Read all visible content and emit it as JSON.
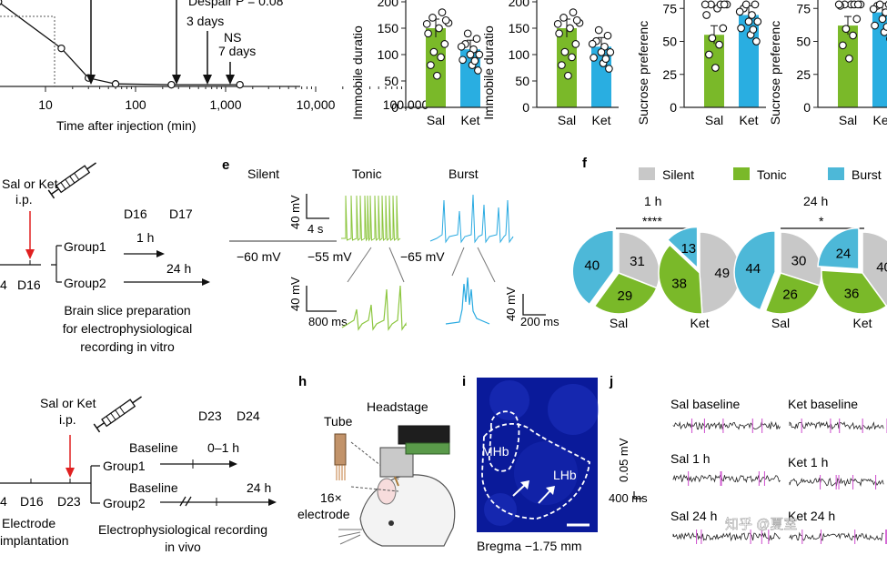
{
  "row1": {
    "panel_a": {
      "despair_fp": "Despair P = 0.08",
      "arrow_3days": "3 days",
      "arrow_ns": "NS",
      "arrow_7days": "7 days",
      "xaxis_label": "Time after injection (min)",
      "xticks": [
        "10",
        "100",
        "1,000",
        "10,000",
        "100,000"
      ]
    },
    "panel_b": {
      "ylabel": "Immobile duratio",
      "yticks": [
        "0",
        "50",
        "100",
        "150",
        "200"
      ],
      "categories": [
        "Sal",
        "Ket"
      ]
    },
    "panel_c": {
      "ylabel": "Immobile duratio",
      "yticks": [
        "0",
        "50",
        "100",
        "150",
        "200"
      ],
      "categories": [
        "Sal",
        "Ket"
      ]
    },
    "panel_d1": {
      "ylabel": "Sucrose preferenc",
      "yticks": [
        "0",
        "25",
        "50",
        "75"
      ],
      "categories": [
        "Sal",
        "Ket"
      ]
    },
    "panel_d2": {
      "ylabel": "Sucrose preferenc",
      "yticks": [
        "0",
        "25",
        "50",
        "75"
      ],
      "categories": [
        "Sal",
        "Ket"
      ]
    }
  },
  "row2": {
    "timeline": {
      "injection": "Sal or Ket",
      "route": "i.p.",
      "day_left": "4",
      "day_inj": "D16",
      "group1": "Group1",
      "group2": "Group2",
      "d16": "D16",
      "d17": "D17",
      "t1h": "1 h",
      "t24h": "24 h",
      "caption_line1": "Brain slice preparation",
      "caption_line2": "for electrophysiological",
      "caption_line3": "recording in vitro"
    },
    "panel_e": {
      "label": "e",
      "silent": "Silent",
      "tonic": "Tonic",
      "burst": "Burst",
      "scale_mv_top": "40 mV",
      "scale_s_top": "4 s",
      "vm_silent": "−60 mV",
      "vm_tonic": "−55 mV",
      "vm_burst": "−65 mV",
      "scale_mv_bottom_left": "40 mV",
      "scale_ms_bottom_left": "800 ms",
      "scale_mv_bottom_right": "40 mV",
      "scale_ms_bottom_right": "200 ms",
      "tonic_color": "#8cc63f",
      "burst_color": "#29aae1"
    },
    "panel_f": {
      "label": "f",
      "legend": [
        {
          "name": "Silent",
          "color": "#c8c8c8"
        },
        {
          "name": "Tonic",
          "color": "#7ab929"
        },
        {
          "name": "Burst",
          "color": "#4db8d8"
        }
      ],
      "time1": "1 h",
      "time2": "24 h",
      "sig1": "****",
      "sig2": "*",
      "pie_labels": [
        "Sal",
        "Ket",
        "Sal",
        "Ket"
      ]
    }
  },
  "row3": {
    "timeline": {
      "injection": "Sal or Ket",
      "route": "i.p.",
      "day_left": "4",
      "d16": "D16",
      "d23": "D23",
      "d23_top": "D23",
      "d24_top": "D24",
      "baseline1": "Baseline",
      "baseline2": "Baseline",
      "t01h": "0–1 h",
      "t24h": "24 h",
      "group1": "Group1",
      "group2": "Group2",
      "electrode_line1": "Electrode",
      "electrode_line2": "implantation",
      "caption_line1": "Electrophysiological recording",
      "caption_line2": "in vivo"
    },
    "panel_h": {
      "label": "h",
      "tube": "Tube",
      "headstage": "Headstage",
      "electrode_line1": "16×",
      "electrode_line2": "electrode"
    },
    "panel_i": {
      "label": "i",
      "mhb": "MHb",
      "lhb": "LHb",
      "bregma": "Bregma −1.75 mm"
    },
    "panel_j": {
      "label": "j",
      "sal_baseline": "Sal baseline",
      "ket_baseline": "Ket baseline",
      "sal_1h": "Sal 1 h",
      "ket_1h": "Ket 1 h",
      "sal_24h": "Sal 24 h",
      "ket_24h": "Ket 24 h",
      "scale_mv": "0.05 mV",
      "scale_ms": "400 ms"
    }
  },
  "watermark": "知乎 @夏室",
  "chart_data": [
    {
      "type": "line",
      "title": "",
      "xlabel": "Time after injection (min)",
      "x_scale": "log",
      "x": [
        3,
        15,
        30,
        60,
        250,
        1440
      ],
      "series": [
        {
          "values": [
            100,
            45,
            10,
            3,
            2,
            2
          ]
        }
      ]
    },
    {
      "type": "bar",
      "categories": [
        "Sal",
        "Ket"
      ],
      "values": [
        150,
        110
      ],
      "ylabel": "Immobile duratio",
      "ylim": [
        0,
        200
      ]
    },
    {
      "type": "bar",
      "categories": [
        "Sal",
        "Ket"
      ],
      "values": [
        150,
        115
      ],
      "ylabel": "Immobile duratio",
      "ylim": [
        0,
        200
      ]
    },
    {
      "type": "bar",
      "categories": [
        "Sal",
        "Ket"
      ],
      "values": [
        55,
        70
      ],
      "ylabel": "Sucrose preferenc",
      "ylim": [
        0,
        80
      ]
    },
    {
      "type": "bar",
      "categories": [
        "Sal",
        "Ket"
      ],
      "values": [
        62,
        72
      ],
      "ylabel": "Sucrose preferenc",
      "ylim": [
        0,
        80
      ]
    },
    {
      "type": "pie",
      "groups": [
        {
          "name": "Sal",
          "time": "1 h",
          "values": {
            "Silent": 31,
            "Tonic": 29,
            "Burst": 40
          }
        },
        {
          "name": "Ket",
          "time": "1 h",
          "values": {
            "Silent": 49,
            "Tonic": 38,
            "Burst": 13
          }
        },
        {
          "name": "Sal",
          "time": "24 h",
          "values": {
            "Silent": 30,
            "Tonic": 26,
            "Burst": 44
          }
        },
        {
          "name": "Ket",
          "time": "24 h",
          "values": {
            "Silent": 40,
            "Tonic": 36,
            "Burst": 24
          }
        }
      ]
    }
  ]
}
